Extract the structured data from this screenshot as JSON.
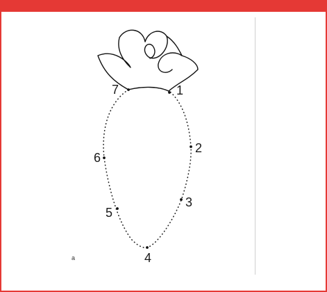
{
  "puzzle": {
    "type": "connect-the-dots",
    "subject": "carrot",
    "accent_color": "#e53935",
    "points": [
      {
        "label": "1"
      },
      {
        "label": "2"
      },
      {
        "label": "3"
      },
      {
        "label": "4"
      },
      {
        "label": "5"
      },
      {
        "label": "6"
      },
      {
        "label": "7"
      }
    ],
    "footer_mark": "a"
  }
}
